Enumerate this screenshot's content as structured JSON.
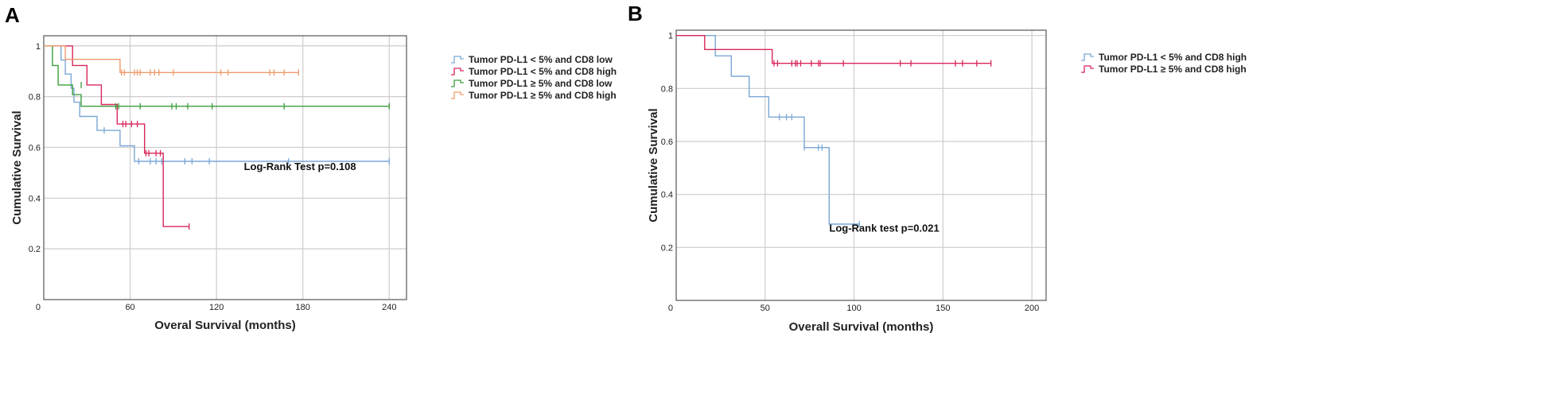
{
  "chart_data": [
    {
      "panel": "A",
      "type": "line",
      "kind": "kaplan-meier",
      "xlabel": "Overal Survival (months)",
      "ylabel": "Cumulative Survival",
      "xlim": [
        0,
        252
      ],
      "ylim": [
        0,
        1.04
      ],
      "xticks": [
        0,
        60,
        120,
        180,
        240
      ],
      "yticks": [
        0.2,
        0.4,
        0.6,
        0.8,
        1.0
      ],
      "x_gridlines": [
        60,
        120,
        180,
        240
      ],
      "y_gridlines": [
        0.2,
        0.4,
        0.6,
        0.8,
        1.0
      ],
      "annotation": "Log-Rank Test p=0.108",
      "annotation_pos": [
        178,
        0.51
      ],
      "series": [
        {
          "name": "Tumor PD-L1 < 5% and CD8 low",
          "color": "#7ba7d6",
          "steps": [
            [
              0,
              1.0
            ],
            [
              12,
              1.0
            ],
            [
              12,
              0.944
            ],
            [
              15,
              0.944
            ],
            [
              15,
              0.889
            ],
            [
              19,
              0.889
            ],
            [
              19,
              0.833
            ],
            [
              21,
              0.833
            ],
            [
              21,
              0.778
            ],
            [
              25,
              0.778
            ],
            [
              25,
              0.722
            ],
            [
              37,
              0.722
            ],
            [
              37,
              0.667
            ],
            [
              53,
              0.667
            ],
            [
              53,
              0.606
            ],
            [
              63,
              0.606
            ],
            [
              63,
              0.545
            ],
            [
              240,
              0.545
            ]
          ],
          "censor": [
            [
              42,
              0.667
            ],
            [
              66,
              0.545
            ],
            [
              74,
              0.545
            ],
            [
              78,
              0.545
            ],
            [
              82,
              0.545
            ],
            [
              98,
              0.545
            ],
            [
              103,
              0.545
            ],
            [
              115,
              0.545
            ],
            [
              170,
              0.545
            ],
            [
              240,
              0.545
            ]
          ]
        },
        {
          "name": "Tumor PD-L1 < 5% and CD8 high",
          "color": "#d8275a",
          "steps": [
            [
              0,
              1.0
            ],
            [
              20,
              1.0
            ],
            [
              20,
              0.923
            ],
            [
              30,
              0.923
            ],
            [
              30,
              0.846
            ],
            [
              40,
              0.846
            ],
            [
              40,
              0.769
            ],
            [
              51,
              0.769
            ],
            [
              51,
              0.692
            ],
            [
              70,
              0.692
            ],
            [
              70,
              0.577
            ],
            [
              83,
              0.577
            ],
            [
              83,
              0.288
            ],
            [
              101,
              0.288
            ]
          ],
          "censor": [
            [
              55,
              0.692
            ],
            [
              57,
              0.692
            ],
            [
              61,
              0.692
            ],
            [
              65,
              0.692
            ],
            [
              71,
              0.577
            ],
            [
              73,
              0.577
            ],
            [
              78,
              0.577
            ],
            [
              81,
              0.577
            ],
            [
              101,
              0.288
            ]
          ]
        },
        {
          "name": "Tumor PD-L1 ≥ 5% and CD8 low",
          "color": "#3b9e3b",
          "steps": [
            [
              0,
              1.0
            ],
            [
              6,
              1.0
            ],
            [
              6,
              0.923
            ],
            [
              10,
              0.923
            ],
            [
              10,
              0.846
            ],
            [
              20,
              0.846
            ],
            [
              20,
              0.808
            ],
            [
              26,
              0.808
            ],
            [
              26,
              0.762
            ],
            [
              240,
              0.762
            ]
          ],
          "censor": [
            [
              26,
              0.846
            ],
            [
              50,
              0.762
            ],
            [
              52,
              0.762
            ],
            [
              67,
              0.762
            ],
            [
              89,
              0.762
            ],
            [
              92,
              0.762
            ],
            [
              100,
              0.762
            ],
            [
              117,
              0.762
            ],
            [
              167,
              0.762
            ],
            [
              240,
              0.762
            ]
          ]
        },
        {
          "name": "Tumor PD-L1 ≥ 5% and CD8 high",
          "color": "#f09a6c",
          "steps": [
            [
              0,
              1.0
            ],
            [
              15,
              1.0
            ],
            [
              15,
              0.947
            ],
            [
              53,
              0.947
            ],
            [
              53,
              0.895
            ],
            [
              177,
              0.895
            ]
          ],
          "censor": [
            [
              54,
              0.895
            ],
            [
              56,
              0.895
            ],
            [
              63,
              0.895
            ],
            [
              65,
              0.895
            ],
            [
              67,
              0.895
            ],
            [
              74,
              0.895
            ],
            [
              77,
              0.895
            ],
            [
              80,
              0.895
            ],
            [
              90,
              0.895
            ],
            [
              123,
              0.895
            ],
            [
              128,
              0.895
            ],
            [
              157,
              0.895
            ],
            [
              160,
              0.895
            ],
            [
              167,
              0.895
            ],
            [
              177,
              0.895
            ]
          ]
        }
      ]
    },
    {
      "panel": "B",
      "type": "line",
      "kind": "kaplan-meier",
      "xlabel": "Overall Survival (months)",
      "ylabel": "Cumulative Survival",
      "xlim": [
        0,
        208
      ],
      "ylim": [
        0,
        1.02
      ],
      "xticks": [
        0,
        50,
        100,
        150,
        200
      ],
      "yticks": [
        0.2,
        0.4,
        0.6,
        0.8,
        1.0
      ],
      "x_gridlines": [
        50,
        100,
        150,
        200
      ],
      "y_gridlines": [
        0.2,
        0.4,
        0.6,
        0.8,
        1.0
      ],
      "annotation": "Log-Rank test p=0.021",
      "annotation_pos": [
        117,
        0.26
      ],
      "series": [
        {
          "name": "Tumor PD-L1 < 5% and CD8 high",
          "color": "#7ba7d6",
          "steps": [
            [
              0,
              1.0
            ],
            [
              22,
              1.0
            ],
            [
              22,
              0.923
            ],
            [
              31,
              0.923
            ],
            [
              31,
              0.846
            ],
            [
              41,
              0.846
            ],
            [
              41,
              0.769
            ],
            [
              52,
              0.769
            ],
            [
              52,
              0.692
            ],
            [
              72,
              0.692
            ],
            [
              72,
              0.577
            ],
            [
              86,
              0.577
            ],
            [
              86,
              0.288
            ],
            [
              103,
              0.288
            ]
          ],
          "censor": [
            [
              58,
              0.692
            ],
            [
              62,
              0.692
            ],
            [
              65,
              0.692
            ],
            [
              72,
              0.577
            ],
            [
              80,
              0.577
            ],
            [
              82,
              0.577
            ],
            [
              103,
              0.288
            ]
          ]
        },
        {
          "name": "Tumor PD-L1 ≥ 5% and CD8 high",
          "color": "#d8275a",
          "steps": [
            [
              0,
              1.0
            ],
            [
              16,
              1.0
            ],
            [
              16,
              0.947
            ],
            [
              54,
              0.947
            ],
            [
              54,
              0.895
            ],
            [
              177,
              0.895
            ]
          ],
          "censor": [
            [
              55,
              0.895
            ],
            [
              57,
              0.895
            ],
            [
              65,
              0.895
            ],
            [
              67,
              0.895
            ],
            [
              68,
              0.895
            ],
            [
              70,
              0.895
            ],
            [
              76,
              0.895
            ],
            [
              80,
              0.895
            ],
            [
              81,
              0.895
            ],
            [
              94,
              0.895
            ],
            [
              126,
              0.895
            ],
            [
              132,
              0.895
            ],
            [
              157,
              0.895
            ],
            [
              161,
              0.895
            ],
            [
              169,
              0.895
            ],
            [
              177,
              0.895
            ]
          ]
        }
      ]
    }
  ]
}
